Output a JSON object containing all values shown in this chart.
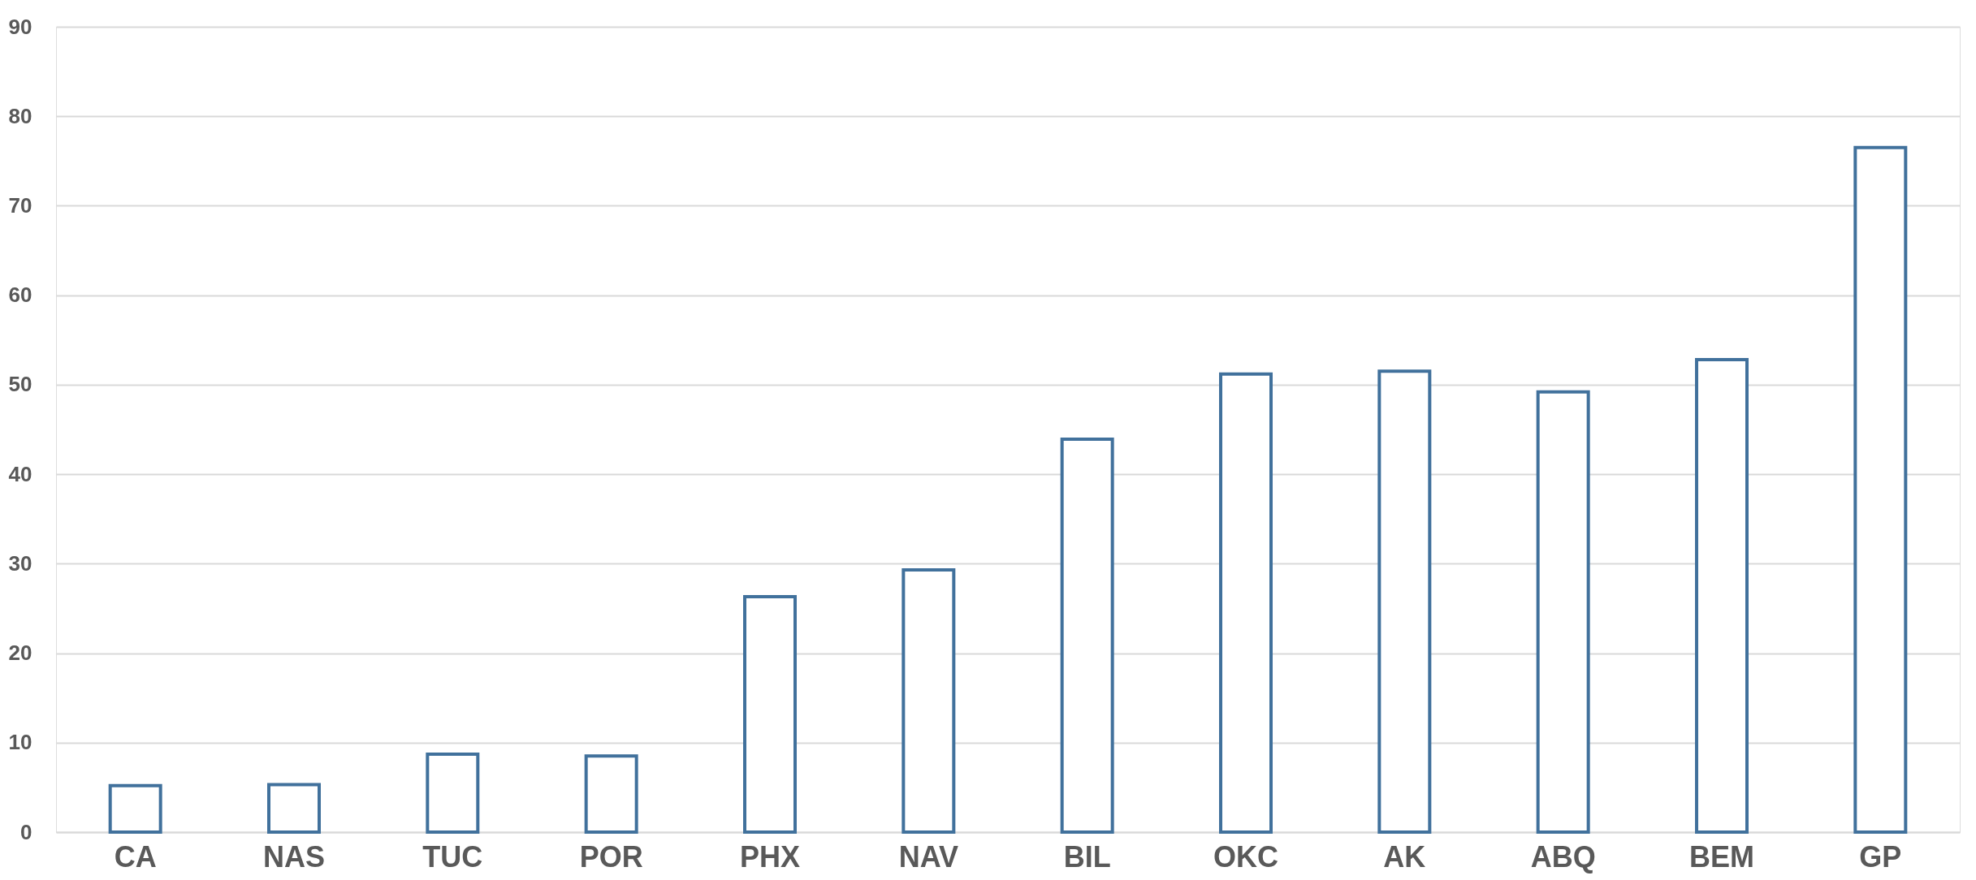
{
  "chart_data": {
    "type": "bar",
    "categories": [
      "CA",
      "NAS",
      "TUC",
      "POR",
      "PHX",
      "NAV",
      "BIL",
      "OKC",
      "AK",
      "ABQ",
      "BEM",
      "GP"
    ],
    "values": [
      5.2,
      5.3,
      8.7,
      8.5,
      26.3,
      29.3,
      43.9,
      51.2,
      51.5,
      49.2,
      52.8,
      76.5
    ],
    "color": "#41719c",
    "ylim": [
      0,
      90
    ],
    "yticks": [
      0,
      10,
      20,
      30,
      40,
      50,
      60,
      70,
      80,
      90
    ],
    "grid": "y"
  }
}
